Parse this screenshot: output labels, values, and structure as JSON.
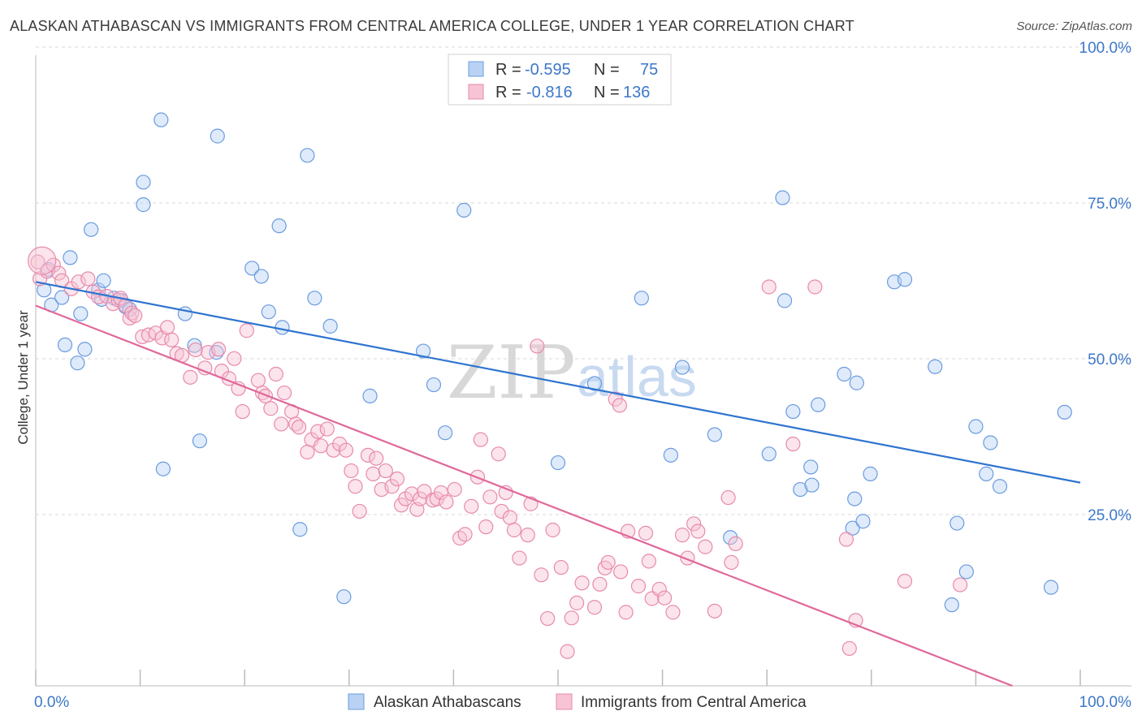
{
  "title": "ALASKAN ATHABASCAN VS IMMIGRANTS FROM CENTRAL AMERICA COLLEGE, UNDER 1 YEAR CORRELATION CHART",
  "source": "Source: ZipAtlas.com",
  "colors": {
    "blue": "#6a9be0",
    "blue_fill": "#b9d2f3",
    "blue_line": "#2f74d0",
    "pink": "#e88aab",
    "pink_fill": "#f6c4d4",
    "pink_line": "#e0689a",
    "axis_text": "#3d78c8",
    "grid": "#d9d9d9"
  },
  "legend": {
    "rows": [
      {
        "r_label": "R =",
        "r_value": "-0.595",
        "n_label": "N =",
        "n_value": "75"
      },
      {
        "r_label": "R =",
        "r_value": "-0.816",
        "n_label": "N =",
        "n_value": "136"
      }
    ]
  },
  "watermark": {
    "part1": "ZIP",
    "part2": "atlas"
  },
  "chart_data": {
    "type": "scatter",
    "xlabel": "",
    "ylabel": "College, Under 1 year",
    "xlim": [
      0,
      100
    ],
    "ylim": [
      0,
      100
    ],
    "x_tick_labels": [
      "0.0%",
      "100.0%"
    ],
    "y_tick_labels": [
      "100.0%",
      "75.0%",
      "50.0%",
      "25.0%"
    ],
    "y_ticks": [
      100,
      75,
      50,
      25
    ],
    "grid": true,
    "legend_position": "top-center",
    "series": [
      {
        "name": "Alaskan Athabascans",
        "color": "blue",
        "trend": [
          [
            0,
            64.8
          ],
          [
            100,
            32.6
          ]
        ],
        "points": [
          [
            0.8,
            63.5
          ],
          [
            1.2,
            66.8
          ],
          [
            3.3,
            68.7
          ],
          [
            1.5,
            61.1
          ],
          [
            2.5,
            62.3
          ],
          [
            4.3,
            59.7
          ],
          [
            2.8,
            54.7
          ],
          [
            4.0,
            51.8
          ],
          [
            4.7,
            54.0
          ],
          [
            5.3,
            73.2
          ],
          [
            6.0,
            63.5
          ],
          [
            6.3,
            62.0
          ],
          [
            6.5,
            65.0
          ],
          [
            7.5,
            62.2
          ],
          [
            8.2,
            61.8
          ],
          [
            8.6,
            60.8
          ],
          [
            9.0,
            60.4
          ],
          [
            10.3,
            80.8
          ],
          [
            12.0,
            90.8
          ],
          [
            10.3,
            77.2
          ],
          [
            12.2,
            34.8
          ],
          [
            14.3,
            59.7
          ],
          [
            15.2,
            54.6
          ],
          [
            15.7,
            39.3
          ],
          [
            17.3,
            53.5
          ],
          [
            17.4,
            88.2
          ],
          [
            20.7,
            67.0
          ],
          [
            21.6,
            65.7
          ],
          [
            22.3,
            60.0
          ],
          [
            23.3,
            73.8
          ],
          [
            23.6,
            57.5
          ],
          [
            25.3,
            25.1
          ],
          [
            26.0,
            85.1
          ],
          [
            26.7,
            62.2
          ],
          [
            28.2,
            57.7
          ],
          [
            29.5,
            14.3
          ],
          [
            32.0,
            46.5
          ],
          [
            37.1,
            53.7
          ],
          [
            38.1,
            48.3
          ],
          [
            39.2,
            40.6
          ],
          [
            41.0,
            76.3
          ],
          [
            50.0,
            35.8
          ],
          [
            53.5,
            48.5
          ],
          [
            58.0,
            62.2
          ],
          [
            60.8,
            37.0
          ],
          [
            61.9,
            51.1
          ],
          [
            65.0,
            40.3
          ],
          [
            66.5,
            23.8
          ],
          [
            70.2,
            37.2
          ],
          [
            72.5,
            44.0
          ],
          [
            71.5,
            78.3
          ],
          [
            71.7,
            61.8
          ],
          [
            73.2,
            31.5
          ],
          [
            74.2,
            35.1
          ],
          [
            74.3,
            32.2
          ],
          [
            74.9,
            45.1
          ],
          [
            77.4,
            50.0
          ],
          [
            78.2,
            25.3
          ],
          [
            78.4,
            30.0
          ],
          [
            78.6,
            48.6
          ],
          [
            79.2,
            26.4
          ],
          [
            79.9,
            34.0
          ],
          [
            82.2,
            64.8
          ],
          [
            83.2,
            65.2
          ],
          [
            86.1,
            51.2
          ],
          [
            87.7,
            13.0
          ],
          [
            88.2,
            26.1
          ],
          [
            89.1,
            18.3
          ],
          [
            90.0,
            41.6
          ],
          [
            91.0,
            34.0
          ],
          [
            91.4,
            39.0
          ],
          [
            92.3,
            32.0
          ],
          [
            97.2,
            15.8
          ],
          [
            98.5,
            43.9
          ]
        ]
      },
      {
        "name": "Immigrants from Central America",
        "color": "pink",
        "trend": [
          [
            0,
            61.0
          ],
          [
            93.5,
            0
          ]
        ],
        "points": [
          [
            0.2,
            68.0
          ],
          [
            0.4,
            65.3
          ],
          [
            1.1,
            66.5
          ],
          [
            1.7,
            67.5
          ],
          [
            2.2,
            66.2
          ],
          [
            2.5,
            65.0
          ],
          [
            3.4,
            63.7
          ],
          [
            4.1,
            64.8
          ],
          [
            5.0,
            65.3
          ],
          [
            5.5,
            63.2
          ],
          [
            6.0,
            62.4
          ],
          [
            6.8,
            62.5
          ],
          [
            7.4,
            61.3
          ],
          [
            7.9,
            61.9
          ],
          [
            8.1,
            62.2
          ],
          [
            8.6,
            61.0
          ],
          [
            9.0,
            59.0
          ],
          [
            9.2,
            59.8
          ],
          [
            9.5,
            59.4
          ],
          [
            10.2,
            56.0
          ],
          [
            10.8,
            56.3
          ],
          [
            11.5,
            56.6
          ],
          [
            12.1,
            55.8
          ],
          [
            12.6,
            57.5
          ],
          [
            13.0,
            55.5
          ],
          [
            13.5,
            53.3
          ],
          [
            14.0,
            53.0
          ],
          [
            14.8,
            49.5
          ],
          [
            15.3,
            53.9
          ],
          [
            16.2,
            51.0
          ],
          [
            16.5,
            53.5
          ],
          [
            17.5,
            54.0
          ],
          [
            17.8,
            50.5
          ],
          [
            18.5,
            49.3
          ],
          [
            19.0,
            52.5
          ],
          [
            19.4,
            47.7
          ],
          [
            19.8,
            44.0
          ],
          [
            20.2,
            57.0
          ],
          [
            21.3,
            49.0
          ],
          [
            21.7,
            47.0
          ],
          [
            22.0,
            46.5
          ],
          [
            22.5,
            44.5
          ],
          [
            23.0,
            50.0
          ],
          [
            23.5,
            42.0
          ],
          [
            23.8,
            47.0
          ],
          [
            24.5,
            44.0
          ],
          [
            24.9,
            42.0
          ],
          [
            25.2,
            41.5
          ],
          [
            26.0,
            37.5
          ],
          [
            26.4,
            39.5
          ],
          [
            27.0,
            40.8
          ],
          [
            27.3,
            38.5
          ],
          [
            27.9,
            41.2
          ],
          [
            28.5,
            37.8
          ],
          [
            29.1,
            38.8
          ],
          [
            29.7,
            37.8
          ],
          [
            30.2,
            34.5
          ],
          [
            30.6,
            32.0
          ],
          [
            31.0,
            28.0
          ],
          [
            31.8,
            37.0
          ],
          [
            32.3,
            34.0
          ],
          [
            32.6,
            36.5
          ],
          [
            33.1,
            31.5
          ],
          [
            33.5,
            34.5
          ],
          [
            34.1,
            32.0
          ],
          [
            34.6,
            33.2
          ],
          [
            35.0,
            29.0
          ],
          [
            35.4,
            30.0
          ],
          [
            36.0,
            30.8
          ],
          [
            36.5,
            28.3
          ],
          [
            36.8,
            30.0
          ],
          [
            37.2,
            31.2
          ],
          [
            38.0,
            29.8
          ],
          [
            38.4,
            30.0
          ],
          [
            38.8,
            31.0
          ],
          [
            39.3,
            29.5
          ],
          [
            40.1,
            31.5
          ],
          [
            40.6,
            23.7
          ],
          [
            41.1,
            24.3
          ],
          [
            41.7,
            28.8
          ],
          [
            42.3,
            33.5
          ],
          [
            42.6,
            39.5
          ],
          [
            43.1,
            25.5
          ],
          [
            43.5,
            30.3
          ],
          [
            44.3,
            37.2
          ],
          [
            44.6,
            28.0
          ],
          [
            45.0,
            31.0
          ],
          [
            45.4,
            27.0
          ],
          [
            45.8,
            25.0
          ],
          [
            46.3,
            20.5
          ],
          [
            47.1,
            24.2
          ],
          [
            47.4,
            29.2
          ],
          [
            48.0,
            54.5
          ],
          [
            48.4,
            17.8
          ],
          [
            49.0,
            10.8
          ],
          [
            49.5,
            25.0
          ],
          [
            50.3,
            19.0
          ],
          [
            50.9,
            5.5
          ],
          [
            51.3,
            10.9
          ],
          [
            51.8,
            13.3
          ],
          [
            52.3,
            16.5
          ],
          [
            53.5,
            12.6
          ],
          [
            54.0,
            16.3
          ],
          [
            54.5,
            18.9
          ],
          [
            54.8,
            19.8
          ],
          [
            55.5,
            46.0
          ],
          [
            55.9,
            45.0
          ],
          [
            56.0,
            18.3
          ],
          [
            56.5,
            11.8
          ],
          [
            56.7,
            24.8
          ],
          [
            57.7,
            16.0
          ],
          [
            58.4,
            24.5
          ],
          [
            58.7,
            20.0
          ],
          [
            59.0,
            14.0
          ],
          [
            59.7,
            15.5
          ],
          [
            60.2,
            14.1
          ],
          [
            61.0,
            11.8
          ],
          [
            61.9,
            24.2
          ],
          [
            62.4,
            20.5
          ],
          [
            63.0,
            26.0
          ],
          [
            63.4,
            24.8
          ],
          [
            64.1,
            22.3
          ],
          [
            65.0,
            12.0
          ],
          [
            66.3,
            30.2
          ],
          [
            66.6,
            19.8
          ],
          [
            67.0,
            22.8
          ],
          [
            70.2,
            64.0
          ],
          [
            72.5,
            38.8
          ],
          [
            74.6,
            64.0
          ],
          [
            77.6,
            23.5
          ],
          [
            77.9,
            6.0
          ],
          [
            78.5,
            10.5
          ],
          [
            83.2,
            16.8
          ],
          [
            88.5,
            16.2
          ]
        ]
      }
    ]
  },
  "bottom_legend": [
    {
      "label": "Alaskan Athabascans",
      "color": "blue"
    },
    {
      "label": "Immigrants from Central America",
      "color": "pink"
    }
  ]
}
